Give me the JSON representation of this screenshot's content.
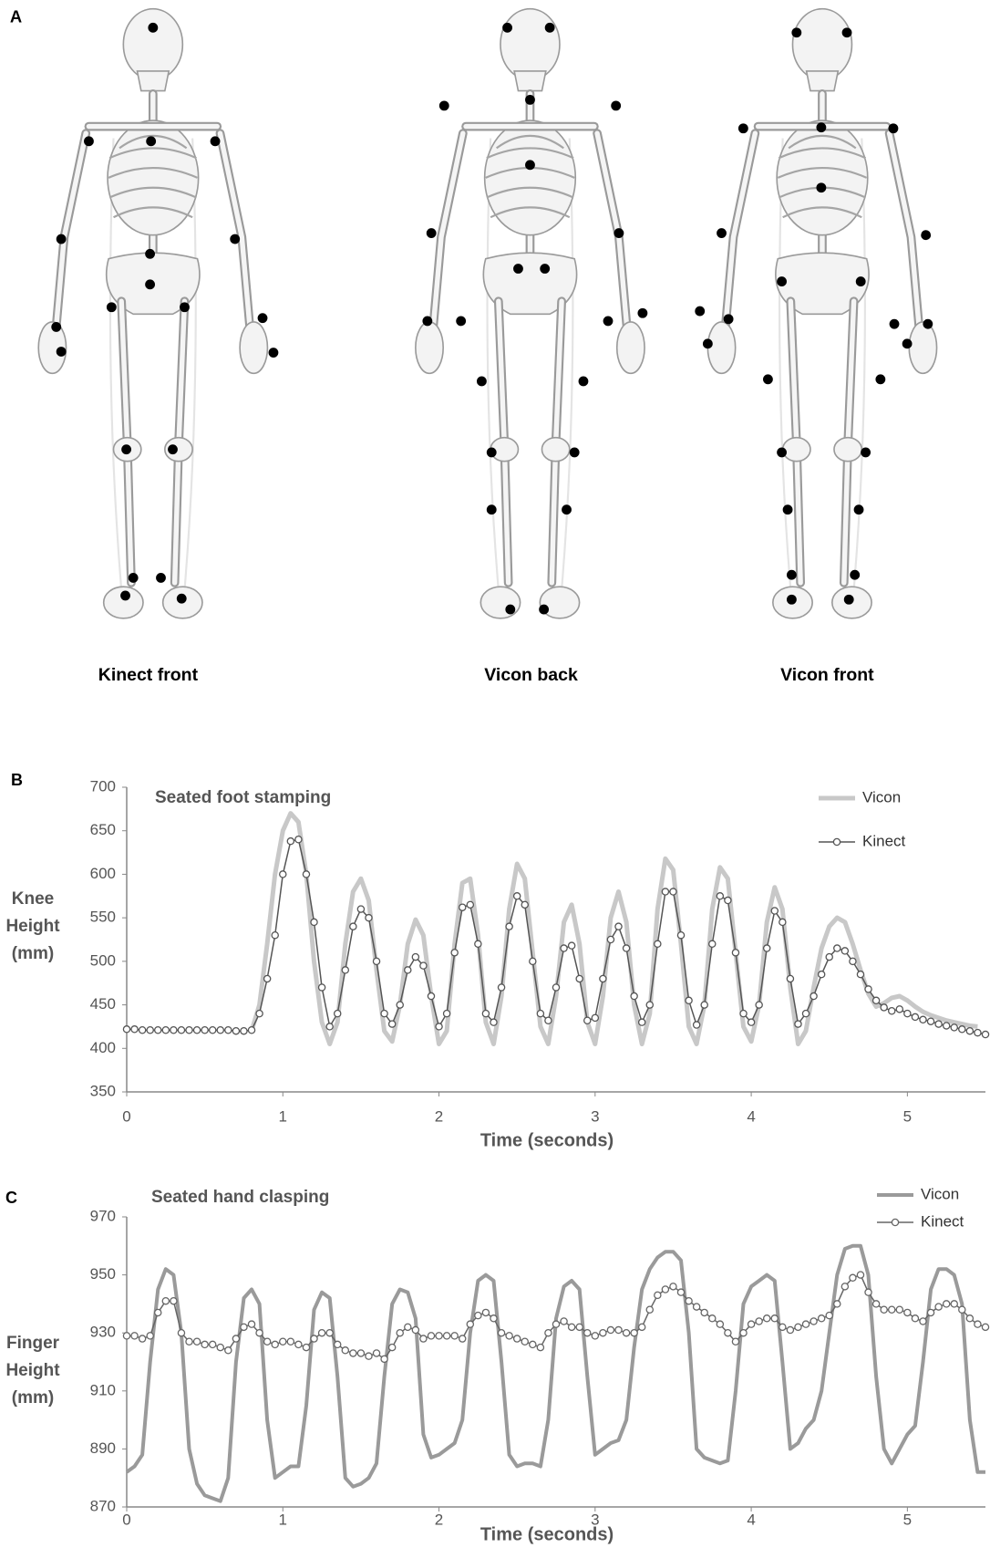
{
  "panel_a": {
    "label": "A",
    "captions": [
      "Kinect front",
      "Vicon back",
      "Vicon front"
    ]
  },
  "chart_data": [
    {
      "type": "line",
      "panel_label": "B",
      "title": "Seated foot stamping",
      "y_label": [
        "Knee",
        "Height",
        "(mm)"
      ],
      "x_label": "Time (seconds)",
      "x": [
        0,
        0.05,
        0.1,
        0.15,
        0.2,
        0.25,
        0.3,
        0.35,
        0.4,
        0.45,
        0.5,
        0.55,
        0.6,
        0.65,
        0.7,
        0.75,
        0.8,
        0.85,
        0.9,
        0.95,
        1,
        1.05,
        1.1,
        1.15,
        1.2,
        1.25,
        1.3,
        1.35,
        1.4,
        1.45,
        1.5,
        1.55,
        1.6,
        1.65,
        1.7,
        1.75,
        1.8,
        1.85,
        1.9,
        1.95,
        2,
        2.05,
        2.1,
        2.15,
        2.2,
        2.25,
        2.3,
        2.35,
        2.4,
        2.45,
        2.5,
        2.55,
        2.6,
        2.65,
        2.7,
        2.75,
        2.8,
        2.85,
        2.9,
        2.95,
        3,
        3.05,
        3.1,
        3.15,
        3.2,
        3.25,
        3.3,
        3.35,
        3.4,
        3.45,
        3.5,
        3.55,
        3.6,
        3.65,
        3.7,
        3.75,
        3.8,
        3.85,
        3.9,
        3.95,
        4,
        4.05,
        4.1,
        4.15,
        4.2,
        4.25,
        4.3,
        4.35,
        4.4,
        4.45,
        4.5,
        4.55,
        4.6,
        4.65,
        4.7,
        4.75,
        4.8,
        4.85,
        4.9,
        4.95,
        5,
        5.05,
        5.1,
        5.15,
        5.2,
        5.25,
        5.3,
        5.35,
        5.4,
        5.45,
        5.5
      ],
      "xlim": [
        0,
        5.5
      ],
      "xticks": [
        0,
        1,
        2,
        3,
        4,
        5
      ],
      "ylim": [
        350,
        700
      ],
      "yticks": [
        350,
        400,
        450,
        500,
        550,
        600,
        650,
        700
      ],
      "grid": false,
      "legend": "upper right",
      "series": [
        {
          "name": "Vicon",
          "color": "#c8c8c8",
          "line_width": 5,
          "marker": "none",
          "values": [
            null,
            null,
            null,
            null,
            null,
            null,
            null,
            null,
            null,
            null,
            null,
            null,
            null,
            null,
            null,
            null,
            420,
            450,
            520,
            600,
            650,
            670,
            660,
            600,
            500,
            430,
            405,
            430,
            520,
            580,
            595,
            570,
            490,
            420,
            408,
            450,
            520,
            548,
            530,
            460,
            405,
            420,
            520,
            590,
            595,
            530,
            430,
            405,
            460,
            560,
            612,
            595,
            510,
            425,
            405,
            460,
            545,
            565,
            520,
            430,
            405,
            460,
            550,
            580,
            545,
            450,
            405,
            440,
            560,
            618,
            605,
            520,
            425,
            405,
            450,
            560,
            608,
            595,
            510,
            425,
            408,
            450,
            545,
            585,
            560,
            470,
            405,
            420,
            470,
            515,
            540,
            550,
            545,
            520,
            490,
            463,
            448,
            452,
            458,
            460,
            455,
            448,
            442,
            438,
            435,
            432,
            430,
            428,
            426,
            425,
            null
          ]
        },
        {
          "name": "Kinect",
          "color": "#555555",
          "line_width": 1.5,
          "marker": "circle",
          "values": [
            422,
            422,
            421,
            421,
            421,
            421,
            421,
            421,
            421,
            421,
            421,
            421,
            421,
            421,
            420,
            420,
            421,
            440,
            480,
            530,
            600,
            638,
            640,
            600,
            545,
            470,
            425,
            440,
            490,
            540,
            560,
            550,
            500,
            440,
            428,
            450,
            490,
            505,
            495,
            460,
            425,
            440,
            510,
            562,
            565,
            520,
            440,
            430,
            470,
            540,
            575,
            565,
            500,
            440,
            432,
            470,
            515,
            518,
            480,
            432,
            435,
            480,
            525,
            540,
            515,
            460,
            430,
            450,
            520,
            580,
            580,
            530,
            455,
            427,
            450,
            520,
            575,
            570,
            510,
            440,
            430,
            450,
            515,
            558,
            545,
            480,
            428,
            440,
            460,
            485,
            505,
            515,
            512,
            500,
            485,
            468,
            455,
            447,
            443,
            445,
            440,
            436,
            433,
            431,
            428,
            426,
            424,
            422,
            420,
            418,
            416
          ]
        }
      ]
    },
    {
      "type": "line",
      "panel_label": "C",
      "title": "Seated hand clasping",
      "y_label": [
        "Finger",
        "Height",
        "(mm)"
      ],
      "x_label": "Time (seconds)",
      "x": [
        0,
        0.05,
        0.1,
        0.15,
        0.2,
        0.25,
        0.3,
        0.35,
        0.4,
        0.45,
        0.5,
        0.55,
        0.6,
        0.65,
        0.7,
        0.75,
        0.8,
        0.85,
        0.9,
        0.95,
        1,
        1.05,
        1.1,
        1.15,
        1.2,
        1.25,
        1.3,
        1.35,
        1.4,
        1.45,
        1.5,
        1.55,
        1.6,
        1.65,
        1.7,
        1.75,
        1.8,
        1.85,
        1.9,
        1.95,
        2,
        2.05,
        2.1,
        2.15,
        2.2,
        2.25,
        2.3,
        2.35,
        2.4,
        2.45,
        2.5,
        2.55,
        2.6,
        2.65,
        2.7,
        2.75,
        2.8,
        2.85,
        2.9,
        2.95,
        3,
        3.05,
        3.1,
        3.15,
        3.2,
        3.25,
        3.3,
        3.35,
        3.4,
        3.45,
        3.5,
        3.55,
        3.6,
        3.65,
        3.7,
        3.75,
        3.8,
        3.85,
        3.9,
        3.95,
        4,
        4.05,
        4.1,
        4.15,
        4.2,
        4.25,
        4.3,
        4.35,
        4.4,
        4.45,
        4.5,
        4.55,
        4.6,
        4.65,
        4.7,
        4.75,
        4.8,
        4.85,
        4.9,
        4.95,
        5,
        5.05,
        5.1,
        5.15,
        5.2,
        5.25,
        5.3,
        5.35,
        5.4,
        5.45,
        5.5
      ],
      "xlim": [
        0,
        5.5
      ],
      "xticks": [
        0,
        1,
        2,
        3,
        4,
        5
      ],
      "ylim": [
        870,
        970
      ],
      "yticks": [
        870,
        890,
        910,
        930,
        950,
        970
      ],
      "grid": false,
      "legend": "upper right",
      "series": [
        {
          "name": "Vicon",
          "color": "#9a9a9a",
          "line_width": 4,
          "marker": "none",
          "values": [
            882,
            884,
            888,
            920,
            945,
            952,
            950,
            930,
            890,
            878,
            874,
            873,
            872,
            880,
            920,
            942,
            945,
            940,
            900,
            880,
            882,
            884,
            884,
            905,
            938,
            944,
            942,
            915,
            880,
            877,
            878,
            880,
            885,
            915,
            940,
            945,
            944,
            935,
            895,
            887,
            888,
            890,
            892,
            900,
            930,
            948,
            950,
            948,
            920,
            888,
            884,
            885,
            885,
            884,
            900,
            935,
            946,
            948,
            945,
            915,
            888,
            890,
            892,
            893,
            900,
            925,
            945,
            952,
            956,
            958,
            958,
            955,
            930,
            890,
            887,
            886,
            885,
            886,
            910,
            940,
            946,
            948,
            950,
            948,
            920,
            890,
            892,
            897,
            900,
            910,
            930,
            950,
            959,
            960,
            960,
            950,
            915,
            890,
            885,
            890,
            895,
            898,
            920,
            945,
            952,
            952,
            950,
            940,
            900,
            882,
            882
          ]
        },
        {
          "name": "Kinect",
          "color": "#666666",
          "line_width": 1.5,
          "marker": "circle",
          "values": [
            929,
            929,
            928,
            929,
            937,
            941,
            941,
            930,
            927,
            927,
            926,
            926,
            925,
            924,
            928,
            932,
            933,
            930,
            927,
            926,
            927,
            927,
            926,
            925,
            928,
            930,
            930,
            926,
            924,
            923,
            923,
            922,
            923,
            921,
            925,
            930,
            932,
            931,
            928,
            929,
            929,
            929,
            929,
            928,
            933,
            936,
            937,
            935,
            930,
            929,
            928,
            927,
            926,
            925,
            930,
            933,
            934,
            932,
            932,
            930,
            929,
            930,
            931,
            931,
            930,
            930,
            932,
            938,
            943,
            945,
            946,
            944,
            941,
            939,
            937,
            935,
            933,
            930,
            927,
            930,
            933,
            934,
            935,
            935,
            932,
            931,
            932,
            933,
            934,
            935,
            936,
            940,
            946,
            949,
            950,
            944,
            940,
            938,
            938,
            938,
            937,
            935,
            934,
            937,
            939,
            940,
            940,
            938,
            935,
            933,
            932
          ]
        }
      ]
    }
  ]
}
